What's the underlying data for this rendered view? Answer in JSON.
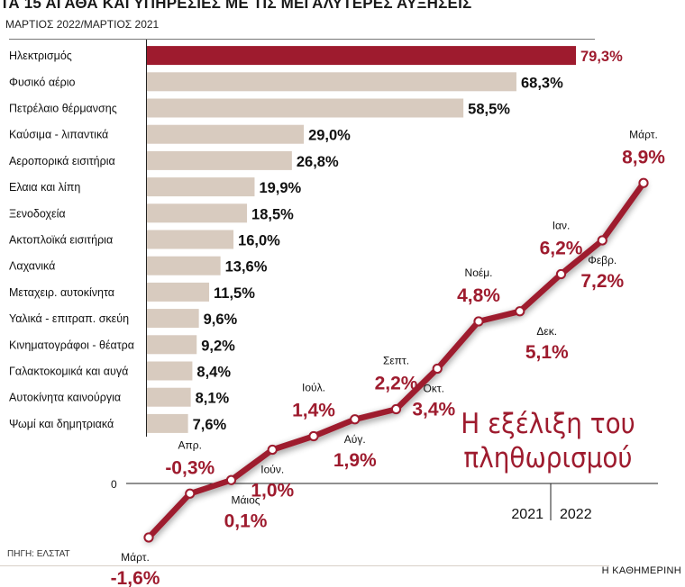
{
  "header": {
    "title": "ΤΑ 15 ΑΓΑΘΑ ΚΑΙ ΥΠΗΡΕΣΙΕΣ ΜΕ ΤΙΣ ΜΕΓΑΛΥΤΕΡΕΣ ΑΥΞΗΣΕΙΣ",
    "subtitle": "ΜΑΡΤΙΟΣ 2022/ΜΑΡΤΙΟΣ 2021"
  },
  "footer": {
    "source": "ΠΗΓΗ: ΕΛΣΤΑΤ",
    "publisher": "Η ΚΑΘΗΜΕΡΙΝΗ"
  },
  "colors": {
    "highlight_bar": "#9e1b2e",
    "bar": "#d8cbbf",
    "line": "#9e1b2e",
    "label_red": "#9e1b2e",
    "text": "#111111"
  },
  "chart_data": [
    {
      "type": "bar",
      "orientation": "horizontal",
      "title": "ΤΑ 15 ΑΓΑΘΑ ΚΑΙ ΥΠΗΡΕΣΙΕΣ ΜΕ ΤΙΣ ΜΕΓΑΛΥΤΕΡΕΣ ΑΥΞΗΣΕΙΣ",
      "subtitle": "ΜΑΡΤΙΟΣ 2022/ΜΑΡΤΙΟΣ 2021",
      "categories": [
        "Ηλεκτρισμός",
        "Φυσικό αέριο",
        "Πετρέλαιο θέρμανσης",
        "Καύσιμα - λιπαντικά",
        "Αεροπορικά εισιτήρια",
        "Ελαια και λίπη",
        "Ξενοδοχεία",
        "Ακτοπλοϊκά εισιτήρια",
        "Λαχανικά",
        "Μεταχειρ. αυτοκίνητα",
        "Υαλικά - επιτραπ. σκεύη",
        "Κινηματογράφοι - θέατρα",
        "Γαλακτοκομικά και αυγά",
        "Αυτοκίνητα καινούργια",
        "Ψωμί και δημητριακά"
      ],
      "values": [
        79.3,
        68.3,
        58.5,
        29.0,
        26.8,
        19.9,
        18.5,
        16.0,
        13.6,
        11.5,
        9.6,
        9.2,
        8.4,
        8.1,
        7.6
      ],
      "value_labels": [
        "79,3%",
        "68,3%",
        "58,5%",
        "29,0%",
        "26,8%",
        "19,9%",
        "18,5%",
        "16,0%",
        "13,6%",
        "11,5%",
        "9,6%",
        "9,2%",
        "8,4%",
        "8,1%",
        "7,6%"
      ],
      "highlight_index": 0,
      "xlim": [
        0,
        79.3
      ]
    },
    {
      "type": "line",
      "title": "Η εξέλιξη του πληθωρισμού",
      "zero_label": "0",
      "points": [
        {
          "month": "Μάρτ.",
          "value": -1.6,
          "label": "-1,6%"
        },
        {
          "month": "Απρ.",
          "value": -0.3,
          "label": "-0,3%"
        },
        {
          "month": "Μάιος",
          "value": 0.1,
          "label": "0,1%"
        },
        {
          "month": "Ιούν.",
          "value": 1.0,
          "label": "1,0%"
        },
        {
          "month": "Ιούλ.",
          "value": 1.4,
          "label": "1,4%"
        },
        {
          "month": "Αύγ.",
          "value": 1.9,
          "label": "1,9%"
        },
        {
          "month": "Σεπτ.",
          "value": 2.2,
          "label": "2,2%"
        },
        {
          "month": "Οκτ.",
          "value": 3.4,
          "label": "3,4%"
        },
        {
          "month": "Νοέμ.",
          "value": 4.8,
          "label": "4,8%"
        },
        {
          "month": "Δεκ.",
          "value": 5.1,
          "label": "5,1%"
        },
        {
          "month": "Ιαν.",
          "value": 6.2,
          "label": "6,2%"
        },
        {
          "month": "Φεβρ.",
          "value": 7.2,
          "label": "7,2%"
        },
        {
          "month": "Μάρτ.",
          "value": 8.9,
          "label": "8,9%"
        }
      ],
      "years": [
        "2021",
        "2022"
      ]
    }
  ]
}
